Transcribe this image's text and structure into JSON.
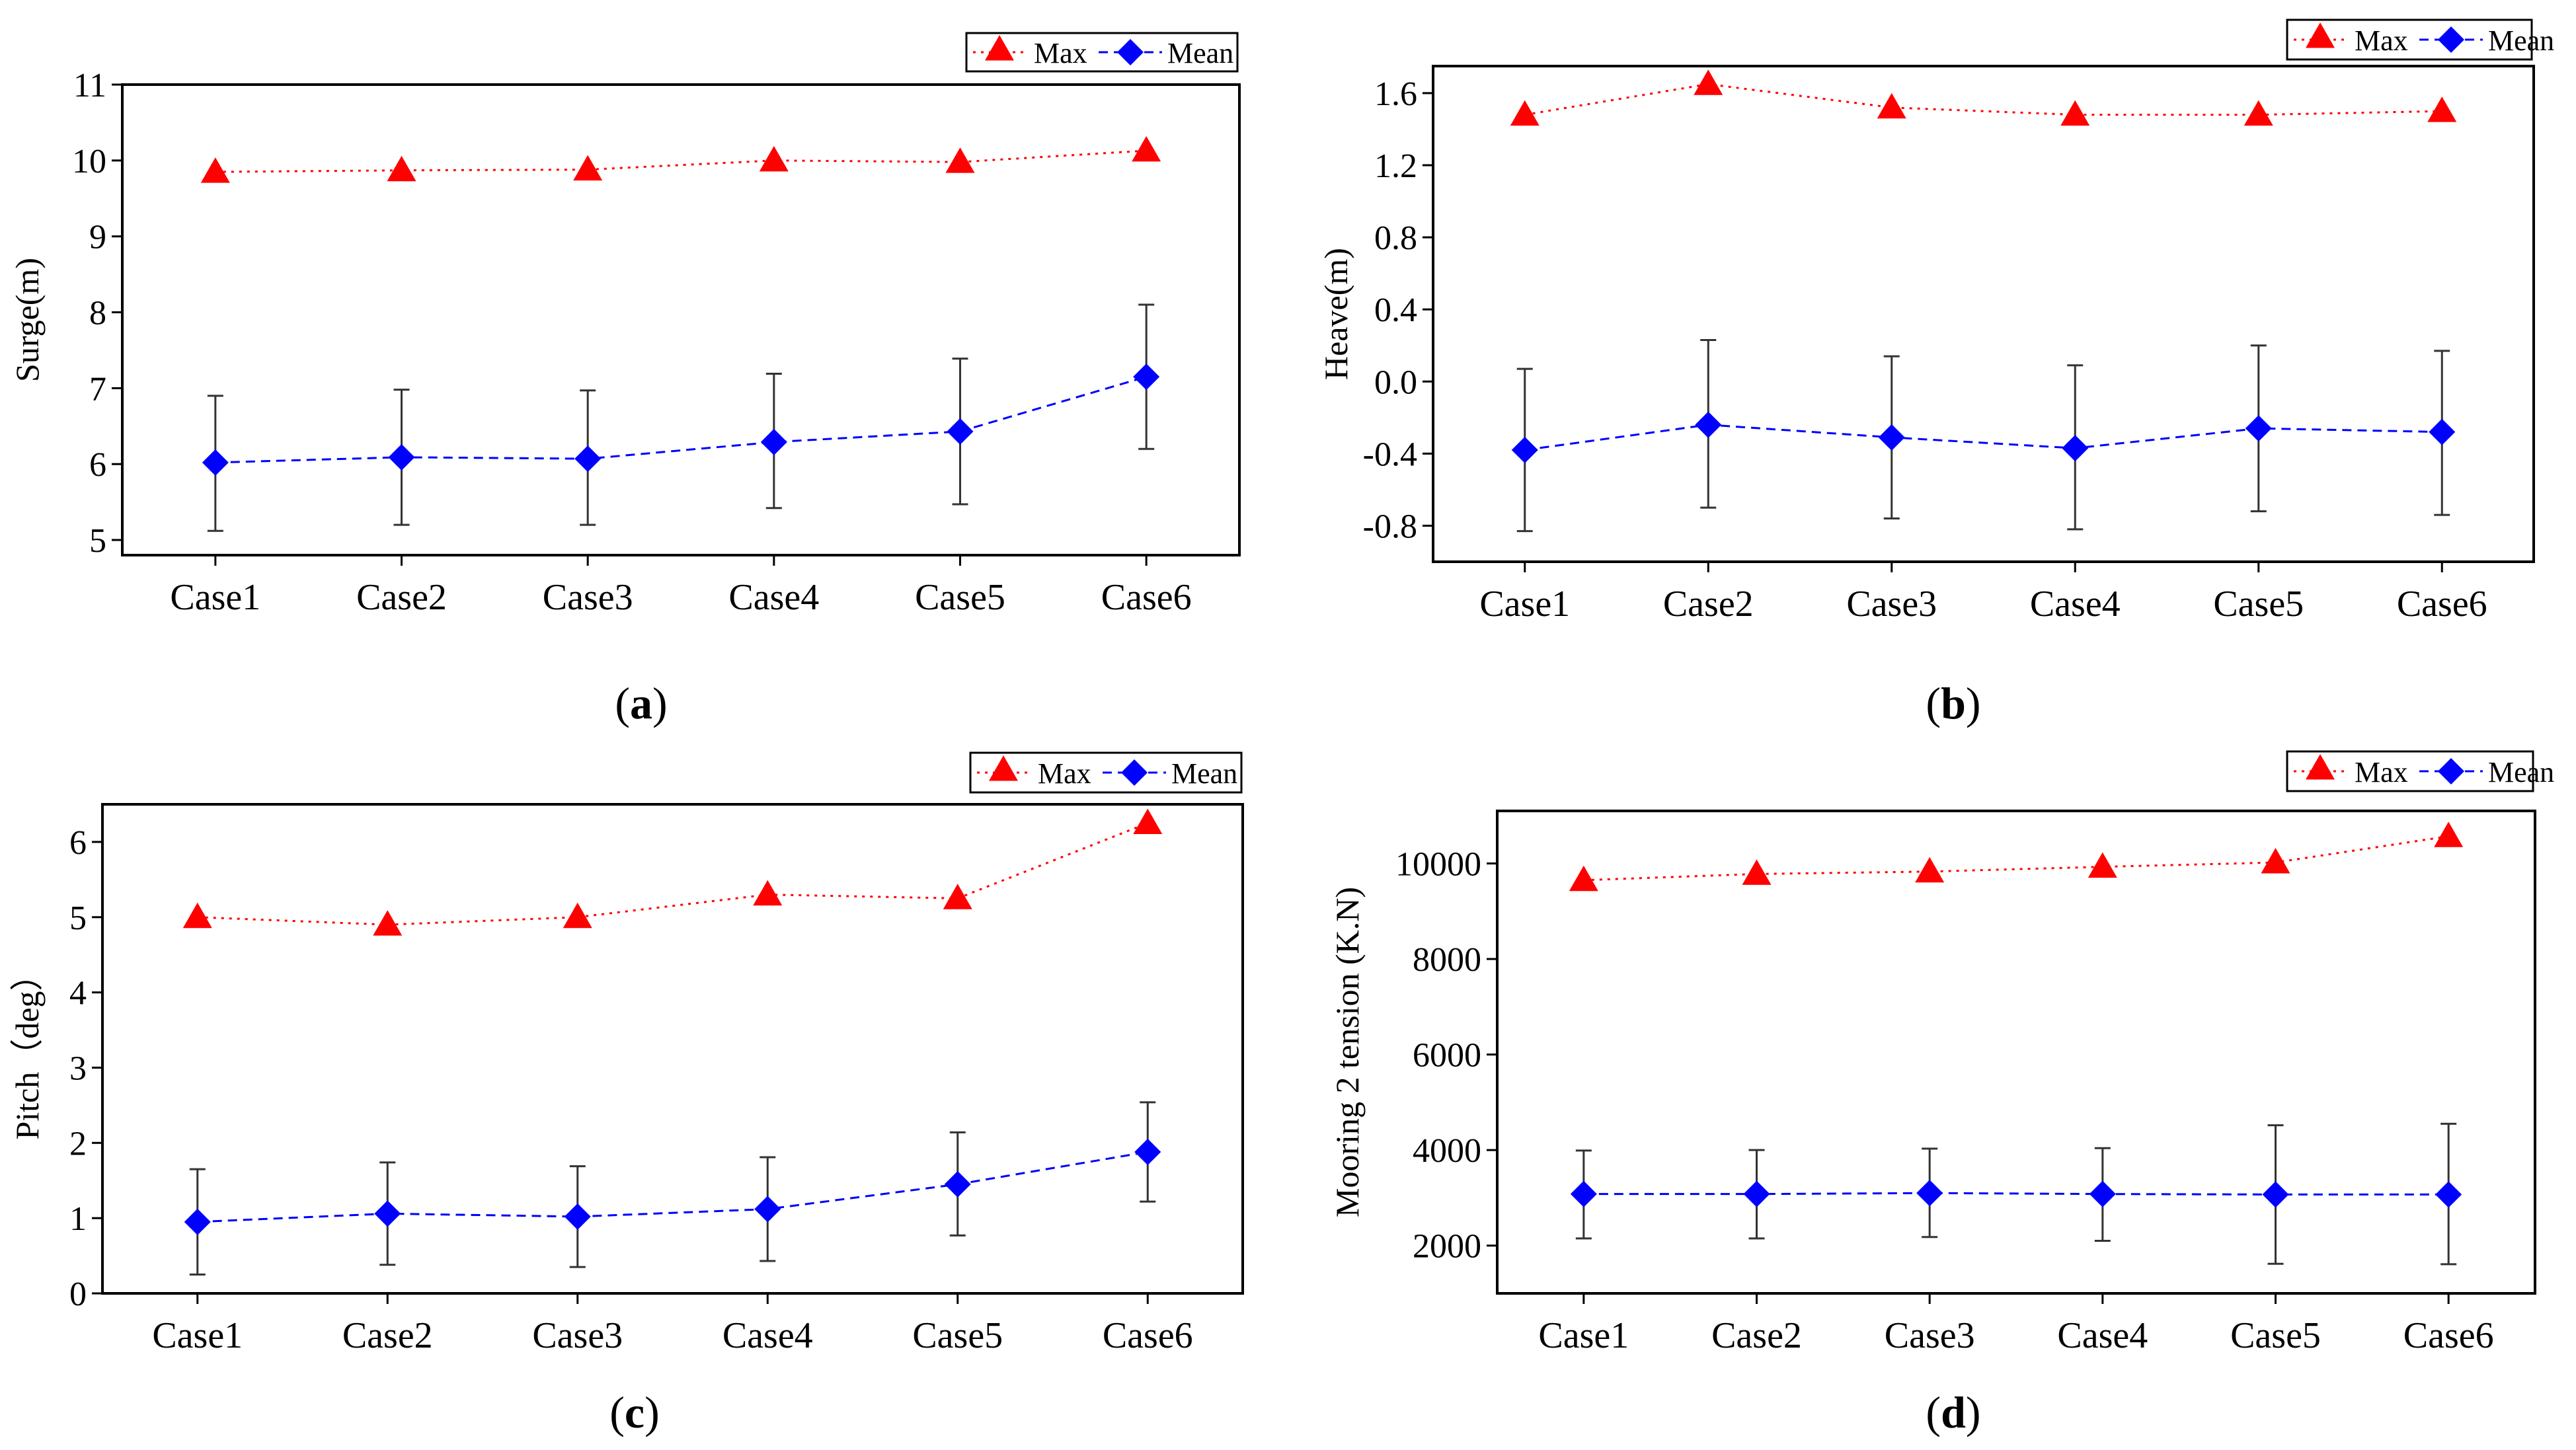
{
  "chart_data": [
    {
      "id": "a",
      "type": "line",
      "caption": "a",
      "categories": [
        "Case1",
        "Case2",
        "Case3",
        "Case4",
        "Case5",
        "Case6"
      ],
      "xlabel": "",
      "ylabel": "Surge(m)",
      "ylim": [
        4.8,
        11
      ],
      "yticks": [
        5,
        6,
        7,
        8,
        9,
        10,
        11
      ],
      "ytick_labels": [
        "5",
        "6",
        "7",
        "8",
        "9",
        "10",
        "11"
      ],
      "legend": {
        "position": "top-right",
        "max_label": "Max",
        "mean_label": "Mean"
      },
      "series": [
        {
          "name": "Max",
          "color": "#ff0000",
          "marker": "triangle",
          "style": "dotted",
          "values": [
            9.85,
            9.87,
            9.88,
            10.0,
            9.98,
            10.13
          ]
        },
        {
          "name": "Mean",
          "color": "#0000ff",
          "marker": "diamond",
          "style": "dashed",
          "values": [
            6.02,
            6.09,
            6.07,
            6.29,
            6.43,
            7.15
          ],
          "error_low": [
            5.12,
            5.2,
            5.2,
            5.42,
            5.47,
            6.2
          ],
          "error_high": [
            6.9,
            6.98,
            6.97,
            7.19,
            7.39,
            8.1
          ]
        }
      ]
    },
    {
      "id": "b",
      "type": "line",
      "caption": "b",
      "categories": [
        "Case1",
        "Case2",
        "Case3",
        "Case4",
        "Case5",
        "Case6"
      ],
      "xlabel": "",
      "ylabel": "Heave(m)",
      "ylim": [
        -1.0,
        1.75
      ],
      "yticks": [
        -0.8,
        -0.4,
        0.0,
        0.4,
        0.8,
        1.2,
        1.6
      ],
      "ytick_labels": [
        "-0.8",
        "-0.4",
        "0.0",
        "0.4",
        "0.8",
        "1.2",
        "1.6"
      ],
      "legend": {
        "position": "top-right",
        "max_label": "Max",
        "mean_label": "Mean"
      },
      "series": [
        {
          "name": "Max",
          "color": "#ff0000",
          "marker": "triangle",
          "style": "dotted",
          "values": [
            1.48,
            1.65,
            1.52,
            1.48,
            1.48,
            1.5
          ]
        },
        {
          "name": "Mean",
          "color": "#0000ff",
          "marker": "diamond",
          "style": "dashed",
          "values": [
            -0.38,
            -0.24,
            -0.31,
            -0.37,
            -0.26,
            -0.28
          ],
          "error_low": [
            -0.83,
            -0.7,
            -0.76,
            -0.82,
            -0.72,
            -0.74
          ],
          "error_high": [
            0.07,
            0.23,
            0.14,
            0.09,
            0.2,
            0.17
          ]
        }
      ]
    },
    {
      "id": "c",
      "type": "line",
      "caption": "c",
      "categories": [
        "Case1",
        "Case2",
        "Case3",
        "Case4",
        "Case5",
        "Case6"
      ],
      "xlabel": "",
      "ylabel": "Pitch（deg）",
      "ylim": [
        0,
        6.5
      ],
      "yticks": [
        0,
        1,
        2,
        3,
        4,
        5,
        6
      ],
      "ytick_labels": [
        "0",
        "1",
        "2",
        "3",
        "4",
        "5",
        "6"
      ],
      "legend": {
        "position": "top-right",
        "max_label": "Max",
        "mean_label": "Mean"
      },
      "series": [
        {
          "name": "Max",
          "color": "#ff0000",
          "marker": "triangle",
          "style": "dotted",
          "values": [
            5.0,
            4.9,
            5.0,
            5.3,
            5.25,
            6.25
          ]
        },
        {
          "name": "Mean",
          "color": "#0000ff",
          "marker": "diamond",
          "style": "dashed",
          "values": [
            0.95,
            1.06,
            1.02,
            1.12,
            1.45,
            1.88
          ],
          "error_low": [
            0.25,
            0.38,
            0.35,
            0.43,
            0.77,
            1.22
          ],
          "error_high": [
            1.65,
            1.74,
            1.69,
            1.81,
            2.14,
            2.54
          ]
        }
      ]
    },
    {
      "id": "d",
      "type": "line",
      "caption": "d",
      "categories": [
        "Case1",
        "Case2",
        "Case3",
        "Case4",
        "Case5",
        "Case6"
      ],
      "xlabel": "",
      "ylabel": "Mooring 2 tension (K.N)",
      "ylim": [
        1000,
        11100
      ],
      "yticks": [
        2000,
        4000,
        6000,
        8000,
        10000
      ],
      "ytick_labels": [
        "2000",
        "4000",
        "6000",
        "8000",
        "10000"
      ],
      "legend": {
        "position": "top-right",
        "max_label": "Max",
        "mean_label": "Mean"
      },
      "series": [
        {
          "name": "Max",
          "color": "#ff0000",
          "marker": "triangle",
          "style": "dotted",
          "values": [
            9650,
            9780,
            9830,
            9930,
            10020,
            10570
          ]
        },
        {
          "name": "Mean",
          "color": "#0000ff",
          "marker": "diamond",
          "style": "dashed",
          "values": [
            3080,
            3080,
            3100,
            3080,
            3070,
            3070
          ],
          "error_low": [
            2150,
            2150,
            2180,
            2100,
            1620,
            1610
          ],
          "error_high": [
            3990,
            4000,
            4030,
            4040,
            4520,
            4550
          ]
        }
      ]
    }
  ]
}
